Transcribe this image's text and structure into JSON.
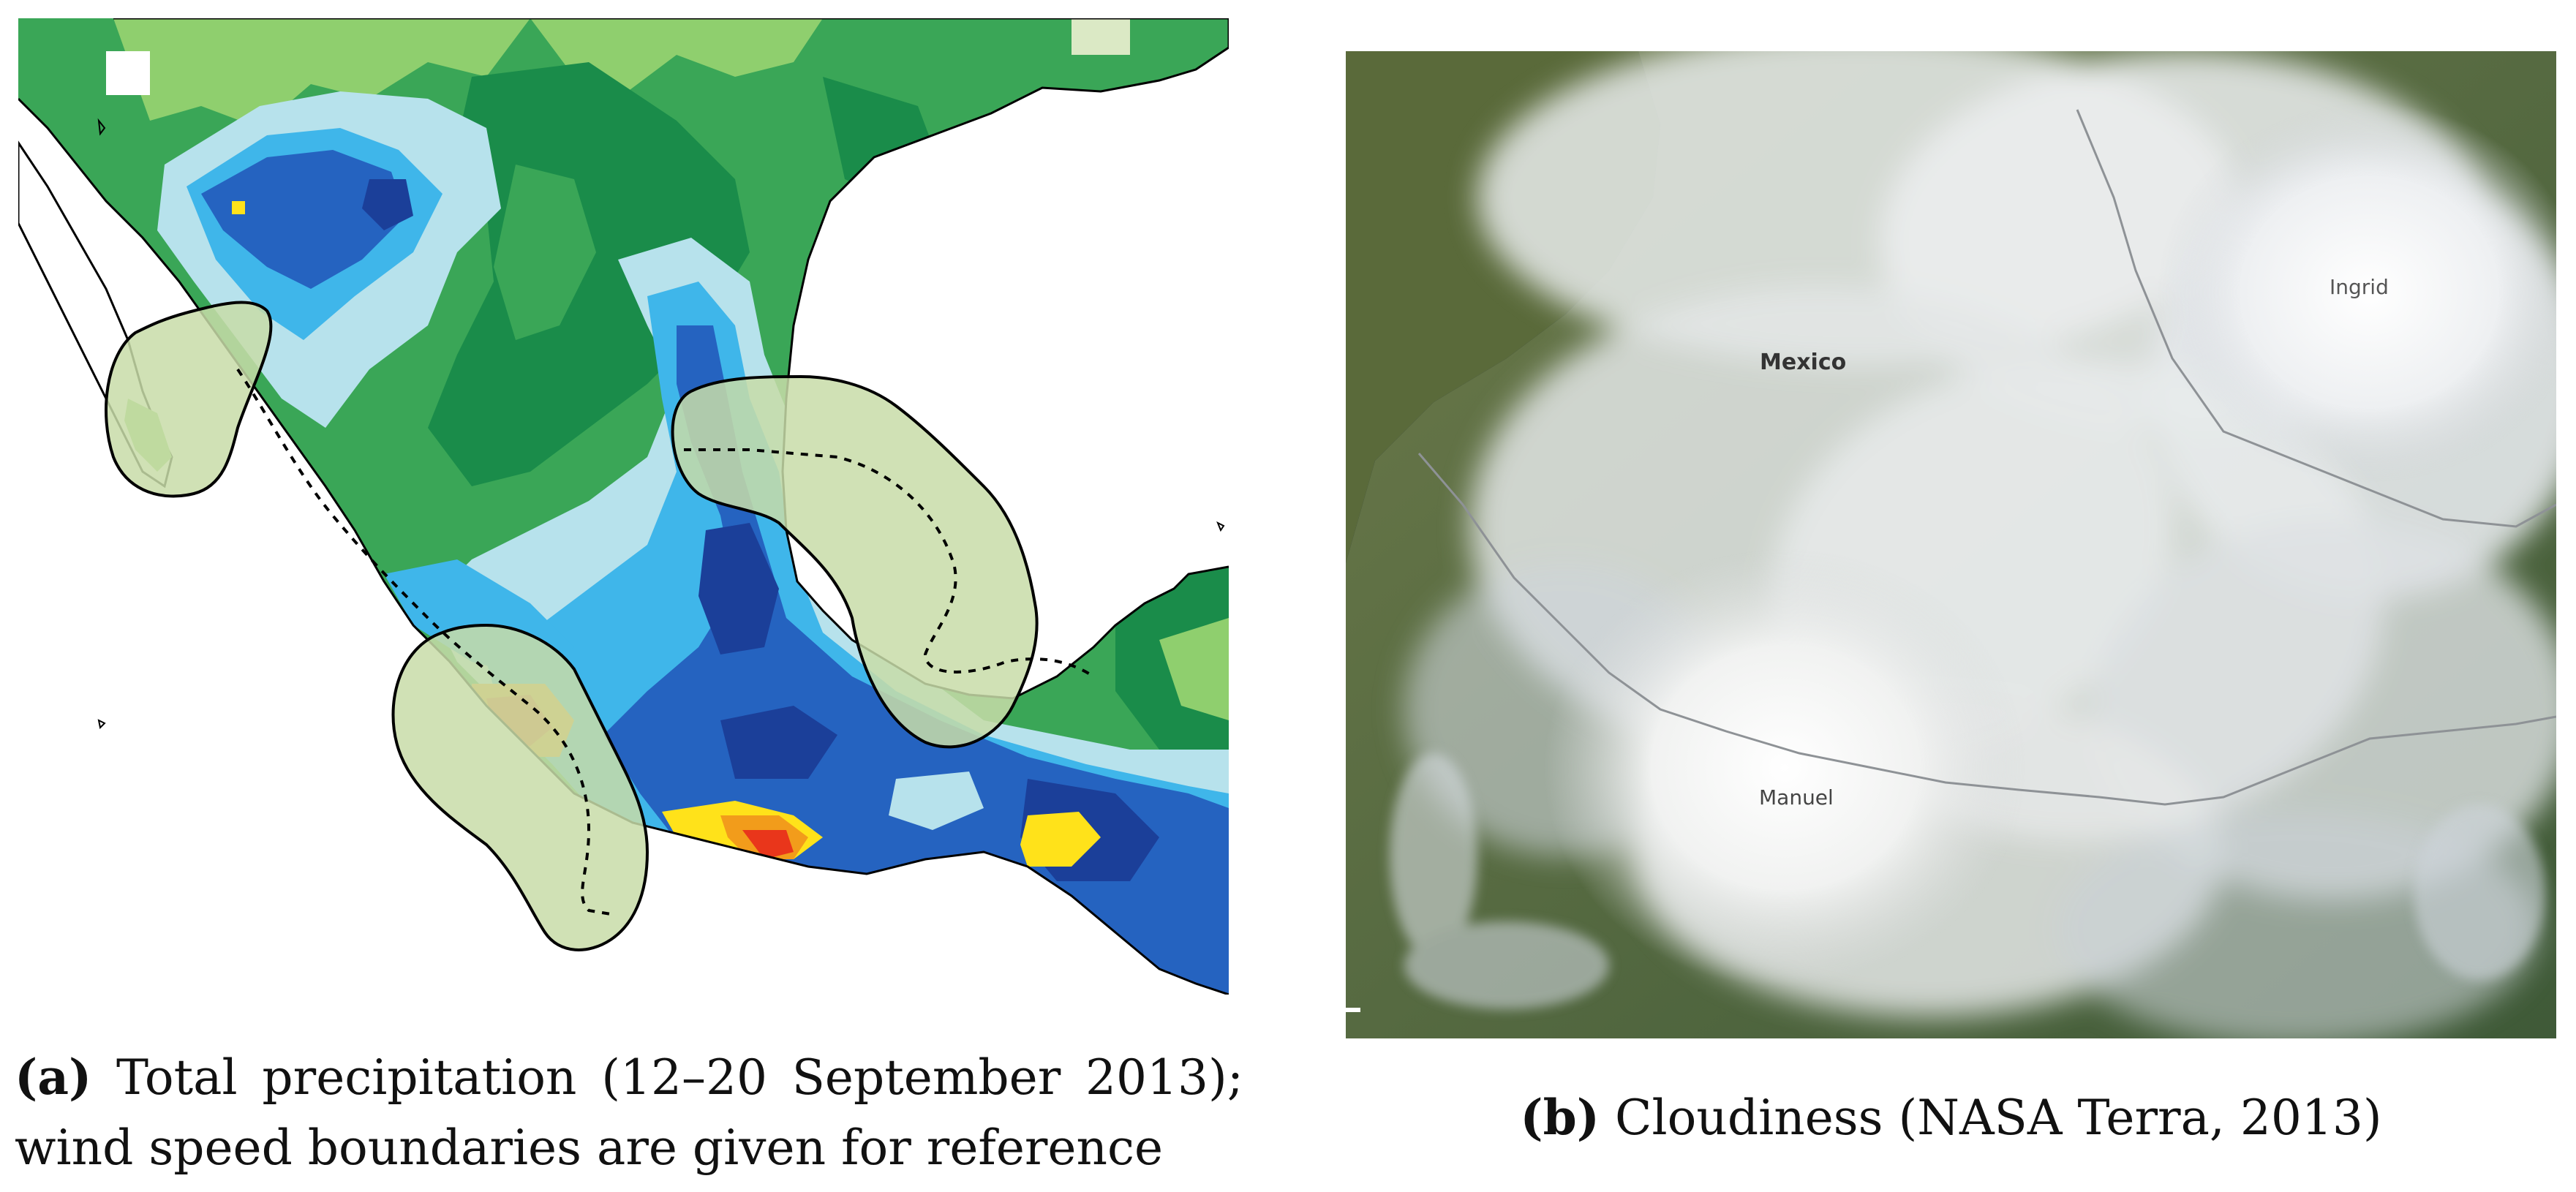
{
  "panel_a": {
    "caption_tag": "(a)",
    "caption_text": "Total precipitation (12–20 September 2013); wind speed boundaries are given for reference",
    "colors": {
      "lightest": "#dbe9c5",
      "light_green": "#8fcf6e",
      "green": "#3aa657",
      "dark_green": "#1a8c4a",
      "pale_blue": "#b7e2ec",
      "sky_blue": "#3fb6ea",
      "blue": "#2563c0",
      "dark_blue": "#1b3f99",
      "yellow": "#ffe21a",
      "orange": "#f29c1b",
      "red": "#e9361b",
      "wind_zone": "#c8dca8"
    }
  },
  "panel_b": {
    "caption_tag": "(b)",
    "caption_text": "Cloudiness (NASA Terra, 2013)",
    "labels": {
      "country": "Mexico",
      "storm_west": "Manuel",
      "storm_east": "Ingrid"
    }
  }
}
